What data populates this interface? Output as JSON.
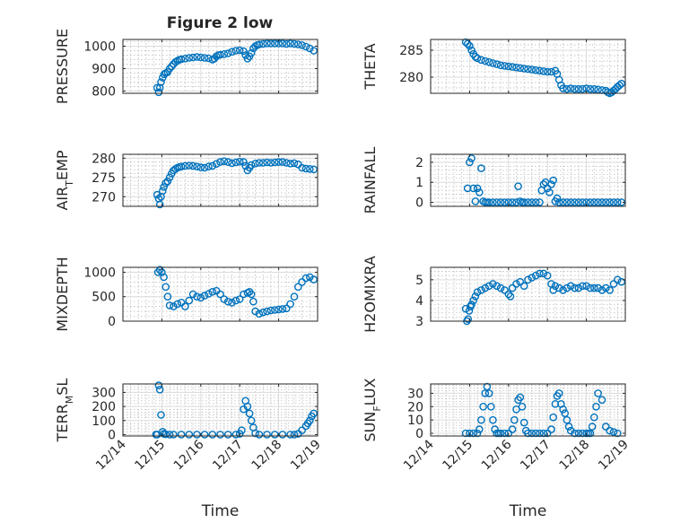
{
  "figure": {
    "title": "Figure 2 low"
  },
  "chart_data": [
    {
      "id": "pressure",
      "type": "scatter",
      "ylabel": "PRESSURE",
      "ylim": [
        790,
        1030
      ],
      "yticks": [
        800,
        900,
        1000
      ],
      "xlim": [
        14,
        19
      ],
      "x": [
        14.88,
        14.92,
        14.95,
        14.98,
        15.02,
        15.06,
        15.1,
        15.15,
        15.2,
        15.25,
        15.3,
        15.35,
        15.4,
        15.45,
        15.5,
        15.6,
        15.7,
        15.8,
        15.9,
        16.0,
        16.1,
        16.2,
        16.3,
        16.35,
        16.4,
        16.45,
        16.5,
        16.6,
        16.7,
        16.8,
        16.9,
        17.0,
        17.1,
        17.15,
        17.2,
        17.25,
        17.3,
        17.35,
        17.4,
        17.45,
        17.5,
        17.6,
        17.7,
        17.8,
        17.9,
        18.0,
        18.1,
        18.2,
        18.3,
        18.4,
        18.5,
        18.6,
        18.7,
        18.8,
        18.9
      ],
      "y": [
        815,
        795,
        815,
        840,
        860,
        875,
        880,
        885,
        900,
        910,
        920,
        930,
        935,
        940,
        942,
        945,
        948,
        950,
        952,
        950,
        948,
        946,
        940,
        945,
        955,
        960,
        962,
        965,
        968,
        975,
        980,
        982,
        978,
        960,
        945,
        955,
        970,
        990,
        1000,
        1005,
        1008,
        1010,
        1012,
        1012,
        1012,
        1012,
        1012,
        1010,
        1012,
        1010,
        1008,
        1005,
        998,
        990,
        980
      ]
    },
    {
      "id": "theta",
      "type": "scatter",
      "ylabel": "THETA",
      "ylim": [
        277,
        287
      ],
      "yticks": [
        280,
        285
      ],
      "xlim": [
        14,
        19
      ],
      "x": [
        14.9,
        14.95,
        15.0,
        15.05,
        15.1,
        15.15,
        15.2,
        15.3,
        15.4,
        15.5,
        15.6,
        15.7,
        15.8,
        15.9,
        16.0,
        16.1,
        16.2,
        16.3,
        16.4,
        16.5,
        16.6,
        16.7,
        16.8,
        16.9,
        17.0,
        17.1,
        17.2,
        17.25,
        17.3,
        17.35,
        17.4,
        17.5,
        17.6,
        17.7,
        17.8,
        17.9,
        18.0,
        18.1,
        18.2,
        18.3,
        18.4,
        18.5,
        18.55,
        18.6,
        18.65,
        18.7,
        18.75,
        18.8,
        18.85,
        18.9
      ],
      "y": [
        286.5,
        286.2,
        285.8,
        285.0,
        284.3,
        283.8,
        283.5,
        283.2,
        283.0,
        282.8,
        282.6,
        282.4,
        282.2,
        282.1,
        282.0,
        281.9,
        281.8,
        281.7,
        281.6,
        281.5,
        281.4,
        281.3,
        281.2,
        281.1,
        281.0,
        281.0,
        281.2,
        280.6,
        279.5,
        278.5,
        277.9,
        277.8,
        277.9,
        277.8,
        277.8,
        277.8,
        277.9,
        277.8,
        277.8,
        277.7,
        277.6,
        277.5,
        277.2,
        277.0,
        277.2,
        277.5,
        277.8,
        278.2,
        278.5,
        278.8
      ]
    },
    {
      "id": "air_temp",
      "type": "scatter",
      "ylabel": "AIR",
      "ylabel_sub": "T",
      "ylabel_post": "EMP",
      "ylim": [
        267.5,
        281
      ],
      "yticks": [
        270,
        275,
        280
      ],
      "xlim": [
        14,
        19
      ],
      "x": [
        14.88,
        14.92,
        14.95,
        14.98,
        15.02,
        15.05,
        15.1,
        15.15,
        15.2,
        15.25,
        15.3,
        15.35,
        15.4,
        15.45,
        15.5,
        15.6,
        15.7,
        15.8,
        15.9,
        16.0,
        16.1,
        16.2,
        16.3,
        16.4,
        16.5,
        16.6,
        16.7,
        16.8,
        16.9,
        17.0,
        17.1,
        17.15,
        17.2,
        17.25,
        17.3,
        17.4,
        17.5,
        17.6,
        17.7,
        17.8,
        17.9,
        18.0,
        18.1,
        18.2,
        18.3,
        18.4,
        18.5,
        18.6,
        18.7,
        18.8,
        18.9
      ],
      "y": [
        270.5,
        269.5,
        268.0,
        270.0,
        271.5,
        272.5,
        273.5,
        274.0,
        275.0,
        276.0,
        276.8,
        277.2,
        277.5,
        277.7,
        277.8,
        278.0,
        278.1,
        278.0,
        277.8,
        277.6,
        277.5,
        277.8,
        278.0,
        278.5,
        279.0,
        279.2,
        279.0,
        278.7,
        278.9,
        279.1,
        279.0,
        278.0,
        276.8,
        277.5,
        278.2,
        278.6,
        278.8,
        278.8,
        278.9,
        278.8,
        278.9,
        279.0,
        279.0,
        278.8,
        278.6,
        278.7,
        278.4,
        277.5,
        277.3,
        277.2,
        277.1
      ]
    },
    {
      "id": "rainfall",
      "type": "scatter",
      "ylabel": "RAINFALL",
      "ylim": [
        -0.2,
        2.4
      ],
      "yticks": [
        0,
        1,
        2
      ],
      "xlim": [
        14,
        19
      ],
      "x": [
        14.95,
        15.0,
        15.05,
        15.1,
        15.15,
        15.2,
        15.25,
        15.3,
        15.35,
        15.4,
        15.45,
        15.5,
        15.6,
        15.7,
        15.8,
        15.9,
        16.0,
        16.1,
        16.2,
        16.25,
        16.3,
        16.35,
        16.4,
        16.5,
        16.6,
        16.7,
        16.8,
        16.85,
        16.9,
        16.95,
        17.0,
        17.05,
        17.1,
        17.15,
        17.2,
        17.25,
        17.3,
        17.4,
        17.5,
        17.6,
        17.7,
        17.8,
        17.9,
        18.0,
        18.1,
        18.2,
        18.3,
        18.4,
        18.5,
        18.6,
        18.7,
        18.8,
        18.9
      ],
      "y": [
        0.7,
        2.0,
        2.2,
        0.7,
        0.05,
        0.7,
        0.5,
        1.7,
        0.05,
        0,
        0,
        0,
        0,
        0,
        0,
        0,
        0,
        0,
        0,
        0.8,
        0.05,
        0,
        0,
        0,
        0,
        0,
        0,
        0.6,
        0.9,
        1.0,
        0.7,
        0.5,
        0.9,
        1.1,
        0.05,
        0.2,
        0,
        0,
        0,
        0,
        0,
        0,
        0,
        0,
        0,
        0,
        0,
        0,
        0,
        0,
        0,
        0,
        0
      ]
    },
    {
      "id": "mixdepth",
      "type": "scatter",
      "ylabel": "MIXDEPTH",
      "ylim": [
        0,
        1100
      ],
      "yticks": [
        0,
        500,
        1000
      ],
      "xlim": [
        14,
        19
      ],
      "x": [
        14.9,
        14.95,
        15.0,
        15.05,
        15.1,
        15.15,
        15.2,
        15.3,
        15.4,
        15.5,
        15.6,
        15.7,
        15.8,
        15.9,
        16.0,
        16.1,
        16.2,
        16.3,
        16.4,
        16.5,
        16.6,
        16.7,
        16.8,
        16.9,
        17.0,
        17.1,
        17.2,
        17.25,
        17.3,
        17.35,
        17.4,
        17.5,
        17.6,
        17.7,
        17.8,
        17.9,
        18.0,
        18.1,
        18.2,
        18.3,
        18.4,
        18.5,
        18.6,
        18.7,
        18.8,
        18.9
      ],
      "y": [
        1000,
        1050,
        1000,
        900,
        700,
        500,
        320,
        300,
        350,
        380,
        300,
        420,
        550,
        500,
        480,
        520,
        560,
        600,
        620,
        550,
        450,
        400,
        380,
        420,
        450,
        550,
        580,
        600,
        550,
        400,
        200,
        150,
        180,
        200,
        220,
        230,
        240,
        250,
        260,
        350,
        500,
        700,
        800,
        880,
        900,
        850
      ]
    },
    {
      "id": "h2omixra",
      "type": "scatter",
      "ylabel": "H2OMIXRA",
      "ylim": [
        3,
        5.6
      ],
      "yticks": [
        3,
        4,
        5
      ],
      "xlim": [
        14,
        19
      ],
      "x": [
        14.9,
        14.93,
        14.96,
        14.99,
        15.02,
        15.05,
        15.1,
        15.15,
        15.2,
        15.3,
        15.4,
        15.5,
        15.6,
        15.7,
        15.8,
        15.9,
        16.0,
        16.05,
        16.1,
        16.2,
        16.3,
        16.4,
        16.5,
        16.6,
        16.7,
        16.8,
        16.9,
        17.0,
        17.1,
        17.15,
        17.2,
        17.3,
        17.4,
        17.5,
        17.6,
        17.7,
        17.8,
        17.9,
        18.0,
        18.1,
        18.2,
        18.3,
        18.4,
        18.5,
        18.6,
        18.7,
        18.8,
        18.9
      ],
      "y": [
        3.6,
        3.0,
        3.1,
        3.5,
        3.7,
        3.8,
        4.0,
        4.2,
        4.4,
        4.5,
        4.6,
        4.7,
        4.8,
        4.7,
        4.6,
        4.5,
        4.3,
        4.2,
        4.6,
        4.8,
        4.9,
        4.7,
        5.0,
        5.1,
        5.2,
        5.3,
        5.3,
        5.2,
        4.8,
        4.5,
        4.7,
        4.6,
        4.5,
        4.6,
        4.7,
        4.6,
        4.6,
        4.7,
        4.7,
        4.6,
        4.6,
        4.6,
        4.5,
        4.6,
        4.5,
        4.8,
        5.0,
        4.9
      ]
    },
    {
      "id": "terr_msl",
      "type": "scatter",
      "ylabel": "TERR",
      "ylabel_sub": "M",
      "ylabel_post": "SL",
      "ylim": [
        -10,
        360
      ],
      "yticks": [
        0,
        100,
        200,
        300
      ],
      "xlim": [
        14,
        19
      ],
      "x": [
        14.85,
        14.88,
        14.92,
        14.95,
        14.98,
        15.02,
        15.05,
        15.1,
        15.2,
        15.3,
        15.5,
        15.7,
        15.9,
        16.1,
        16.3,
        16.5,
        16.7,
        16.9,
        17.0,
        17.05,
        17.1,
        17.15,
        17.2,
        17.25,
        17.3,
        17.35,
        17.4,
        17.5,
        17.7,
        17.9,
        18.1,
        18.3,
        18.4,
        18.5,
        18.6,
        18.7,
        18.75,
        18.8,
        18.85,
        18.9
      ],
      "y": [
        0,
        0,
        350,
        320,
        140,
        20,
        5,
        2,
        0,
        0,
        0,
        0,
        0,
        0,
        0,
        0,
        0,
        0,
        5,
        30,
        180,
        240,
        200,
        150,
        100,
        50,
        10,
        0,
        0,
        0,
        0,
        0,
        0,
        5,
        30,
        60,
        80,
        100,
        130,
        150
      ]
    },
    {
      "id": "sun_flux",
      "type": "scatter",
      "ylabel": "SUN",
      "ylabel_sub": "F",
      "ylabel_post": "LUX",
      "ylim": [
        -2,
        37
      ],
      "yticks": [
        0,
        10,
        20,
        30
      ],
      "xlim": [
        14,
        19
      ],
      "x": [
        14.9,
        15.0,
        15.1,
        15.2,
        15.25,
        15.3,
        15.35,
        15.4,
        15.45,
        15.5,
        15.55,
        15.6,
        15.65,
        15.7,
        15.75,
        15.8,
        15.9,
        16.0,
        16.1,
        16.15,
        16.2,
        16.25,
        16.3,
        16.35,
        16.4,
        16.45,
        16.5,
        16.6,
        16.7,
        16.8,
        16.9,
        17.0,
        17.1,
        17.15,
        17.2,
        17.25,
        17.3,
        17.35,
        17.4,
        17.45,
        17.5,
        17.55,
        17.6,
        17.7,
        17.8,
        17.9,
        18.0,
        18.05,
        18.1,
        18.15,
        18.2,
        18.25,
        18.3,
        18.4,
        18.5,
        18.6,
        18.7,
        18.8
      ],
      "y": [
        0,
        0,
        0,
        0,
        3,
        10,
        20,
        30,
        35,
        30,
        20,
        10,
        3,
        0,
        0,
        0,
        0,
        0,
        3,
        10,
        18,
        25,
        27,
        20,
        8,
        2,
        0,
        0,
        0,
        0,
        0,
        0,
        3,
        12,
        22,
        28,
        30,
        22,
        18,
        15,
        10,
        5,
        2,
        0,
        0,
        0,
        0,
        0,
        0,
        5,
        12,
        20,
        30,
        25,
        5,
        2,
        1,
        0
      ]
    }
  ],
  "layout_cols": [
    {
      "xlabel": "Time",
      "xticklabels": [
        "12/14",
        "12/15",
        "12/16",
        "12/17",
        "12/18",
        "12/19"
      ]
    },
    {
      "xlabel": "Time",
      "xticklabels": [
        "12/14",
        "12/15",
        "12/16",
        "12/17",
        "12/18",
        "12/19"
      ]
    }
  ]
}
